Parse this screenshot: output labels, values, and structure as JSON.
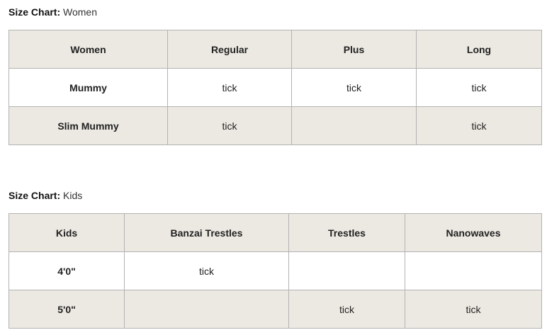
{
  "tables": [
    {
      "caption_label": "Size Chart:",
      "caption_value": "Women",
      "header": [
        "Women",
        "Regular",
        "Plus",
        "Long"
      ],
      "rows": [
        [
          "Mummy",
          "tick",
          "tick",
          "tick"
        ],
        [
          "Slim Mummy",
          "tick",
          "",
          "tick"
        ]
      ]
    },
    {
      "caption_label": "Size Chart:",
      "caption_value": "Kids",
      "header": [
        "Kids",
        "Banzai Trestles",
        "Trestles",
        "Nanowaves"
      ],
      "rows": [
        [
          "4'0\"",
          "tick",
          "",
          ""
        ],
        [
          "5'0\"",
          "",
          "tick",
          "tick"
        ]
      ]
    }
  ],
  "colors": {
    "header_bg": "#ece9e2",
    "border": "#b3b3b3"
  }
}
